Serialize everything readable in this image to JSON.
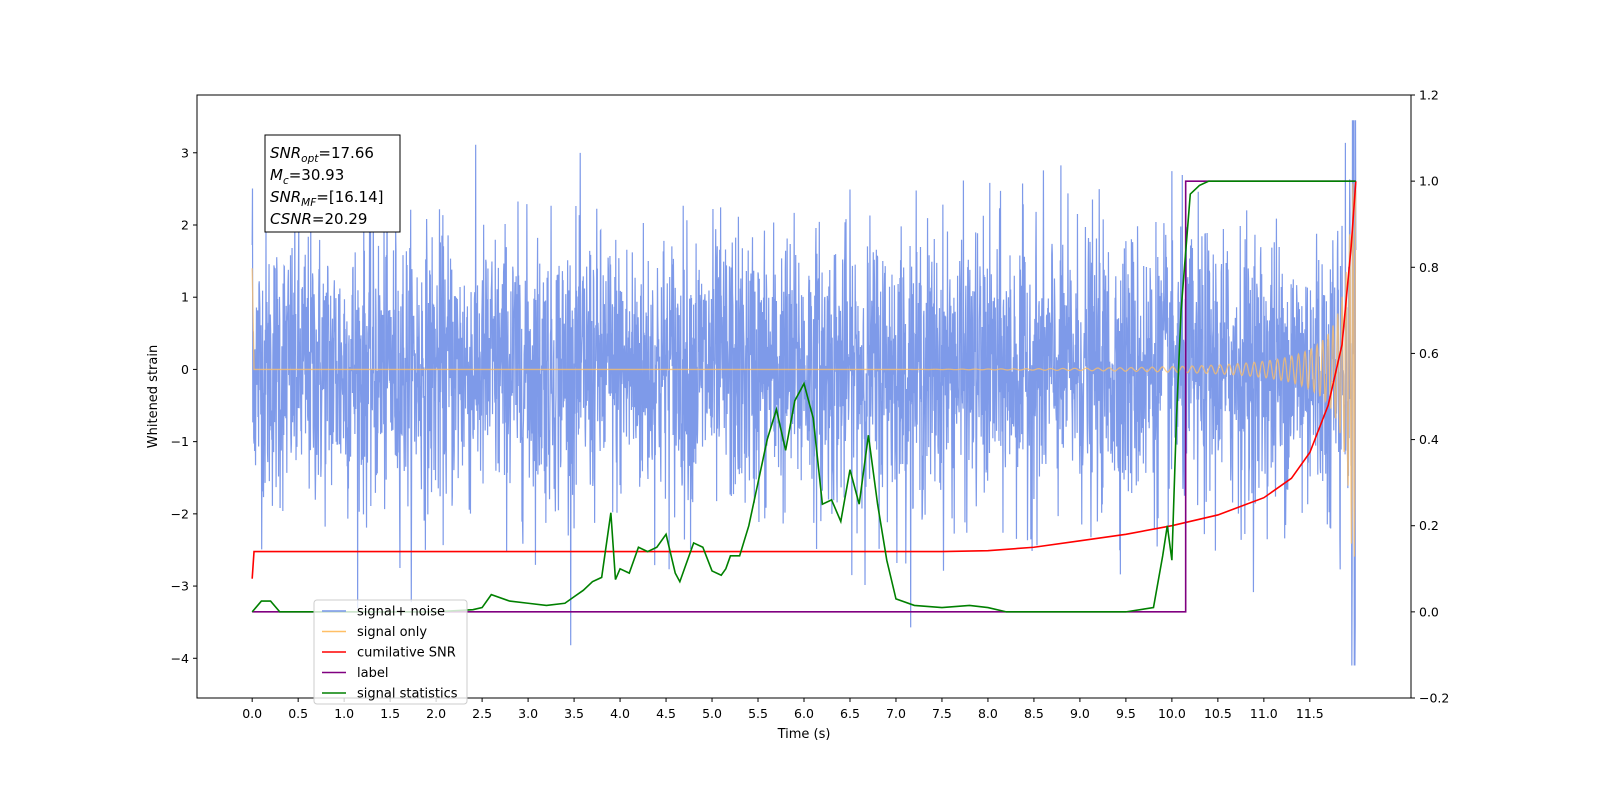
{
  "chart_data": {
    "type": "line",
    "xlabel": "Time (s)",
    "ylabel": "Whitened strain",
    "xlim": [
      -0.6,
      12.6
    ],
    "ylim": [
      -4.55,
      3.8
    ],
    "y2lim": [
      -0.2,
      1.2
    ],
    "xticks": [
      "0.0",
      "0.5",
      "1.0",
      "1.5",
      "2.0",
      "2.5",
      "3.0",
      "3.5",
      "4.0",
      "4.5",
      "5.0",
      "5.5",
      "6.0",
      "6.5",
      "7.0",
      "7.5",
      "8.0",
      "8.5",
      "9.0",
      "9.5",
      "10.0",
      "10.5",
      "11.0",
      "11.5"
    ],
    "yticks": [
      "3",
      "2",
      "1",
      "0",
      "−1",
      "−2",
      "−3",
      "−4"
    ],
    "y2ticks": [
      "1.2",
      "1.0",
      "0.8",
      "0.6",
      "0.4",
      "0.2",
      "0.0",
      "−0.2"
    ],
    "grid": false,
    "legend_position": "lower-left",
    "annotation": {
      "lines": [
        {
          "sym": "SNR",
          "sub": "opt",
          "value": "=17.66"
        },
        {
          "sym": "M",
          "sub": "c",
          "value": "=30.93"
        },
        {
          "sym": "SNR",
          "sub": "MF",
          "value": "=[16.14]"
        },
        {
          "sym": "CSNR",
          "sub": "",
          "value": "=20.29"
        }
      ]
    },
    "series": [
      {
        "name": "signal+ noise",
        "color": "#7795e8",
        "axis": "left",
        "description": "noise band with std ~1 over t=0..12, envelope grows near merger"
      },
      {
        "name": "signal only",
        "color": "#ffbf66",
        "axis": "left",
        "description": "chirp waveform, negligible before t~7.5, amplitude rising to ~2.6 at t=12"
      },
      {
        "name": "cumilative SNR",
        "color": "#ff0000",
        "axis": "right",
        "x": [
          0.0,
          0.02,
          7.5,
          8.0,
          8.5,
          9.0,
          9.5,
          10.0,
          10.5,
          11.0,
          11.3,
          11.5,
          11.7,
          11.85,
          11.95,
          12.0
        ],
        "y": [
          0.077,
          0.14,
          0.14,
          0.142,
          0.15,
          0.165,
          0.18,
          0.2,
          0.225,
          0.265,
          0.31,
          0.37,
          0.48,
          0.62,
          0.85,
          1.0
        ]
      },
      {
        "name": "label",
        "color": "#800080",
        "axis": "right",
        "x": [
          0.0,
          10.15,
          10.15,
          12.0
        ],
        "y": [
          0.0,
          0.0,
          1.0,
          1.0
        ]
      },
      {
        "name": "signal statistics",
        "color": "#008000",
        "axis": "right",
        "x": [
          0.0,
          0.1,
          0.2,
          0.3,
          0.5,
          1.0,
          1.5,
          2.0,
          2.4,
          2.5,
          2.6,
          2.8,
          3.0,
          3.2,
          3.4,
          3.5,
          3.6,
          3.7,
          3.8,
          3.9,
          3.95,
          4.0,
          4.1,
          4.2,
          4.3,
          4.4,
          4.5,
          4.6,
          4.65,
          4.7,
          4.8,
          4.9,
          5.0,
          5.1,
          5.15,
          5.2,
          5.3,
          5.4,
          5.5,
          5.6,
          5.7,
          5.8,
          5.9,
          6.0,
          6.1,
          6.2,
          6.3,
          6.4,
          6.5,
          6.6,
          6.7,
          6.8,
          6.9,
          7.0,
          7.2,
          7.5,
          7.8,
          8.0,
          8.2,
          9.0,
          9.5,
          9.8,
          9.9,
          9.95,
          10.0,
          10.05,
          10.1,
          10.2,
          10.3,
          10.4,
          10.5,
          11.0,
          11.5,
          12.0
        ],
        "y": [
          0.0,
          0.025,
          0.025,
          0.0,
          0.0,
          0.0,
          0.0,
          0.0,
          0.005,
          0.01,
          0.04,
          0.025,
          0.02,
          0.015,
          0.02,
          0.035,
          0.05,
          0.07,
          0.08,
          0.23,
          0.075,
          0.1,
          0.09,
          0.15,
          0.14,
          0.15,
          0.18,
          0.09,
          0.07,
          0.1,
          0.16,
          0.15,
          0.095,
          0.085,
          0.1,
          0.13,
          0.13,
          0.2,
          0.3,
          0.4,
          0.47,
          0.375,
          0.49,
          0.53,
          0.45,
          0.25,
          0.26,
          0.21,
          0.33,
          0.25,
          0.41,
          0.25,
          0.12,
          0.03,
          0.015,
          0.01,
          0.015,
          0.01,
          0.0,
          0.0,
          0.0,
          0.01,
          0.13,
          0.2,
          0.12,
          0.45,
          0.7,
          0.97,
          0.99,
          1.0,
          1.0,
          1.0,
          1.0,
          1.0
        ]
      }
    ],
    "legend": [
      {
        "label": "signal+ noise",
        "color": "#7795e8"
      },
      {
        "label": "signal only",
        "color": "#ffbf66"
      },
      {
        "label": "cumilative SNR",
        "color": "#ff0000"
      },
      {
        "label": "label",
        "color": "#800080"
      },
      {
        "label": "signal statistics",
        "color": "#008000"
      }
    ]
  }
}
